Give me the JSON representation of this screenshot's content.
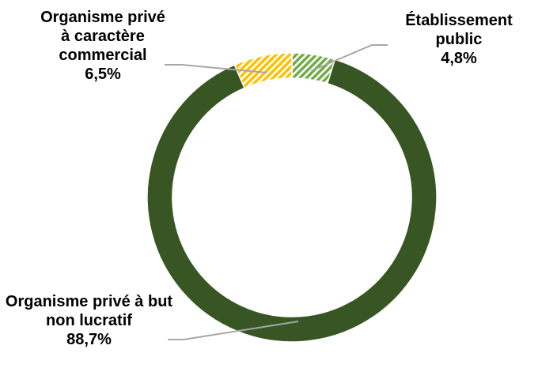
{
  "chart_data": {
    "type": "donut",
    "categories": [
      "Établissement public",
      "Organisme privé à but non lucratif",
      "Organisme privé à caractère commercial"
    ],
    "values": [
      4.8,
      88.7,
      6.5
    ],
    "value_labels": [
      "4,8%",
      "88,7%",
      "6,5%"
    ],
    "colors": [
      "#70ad47",
      "#375623",
      "#ffc000"
    ],
    "hatched": [
      true,
      false,
      true
    ]
  }
}
